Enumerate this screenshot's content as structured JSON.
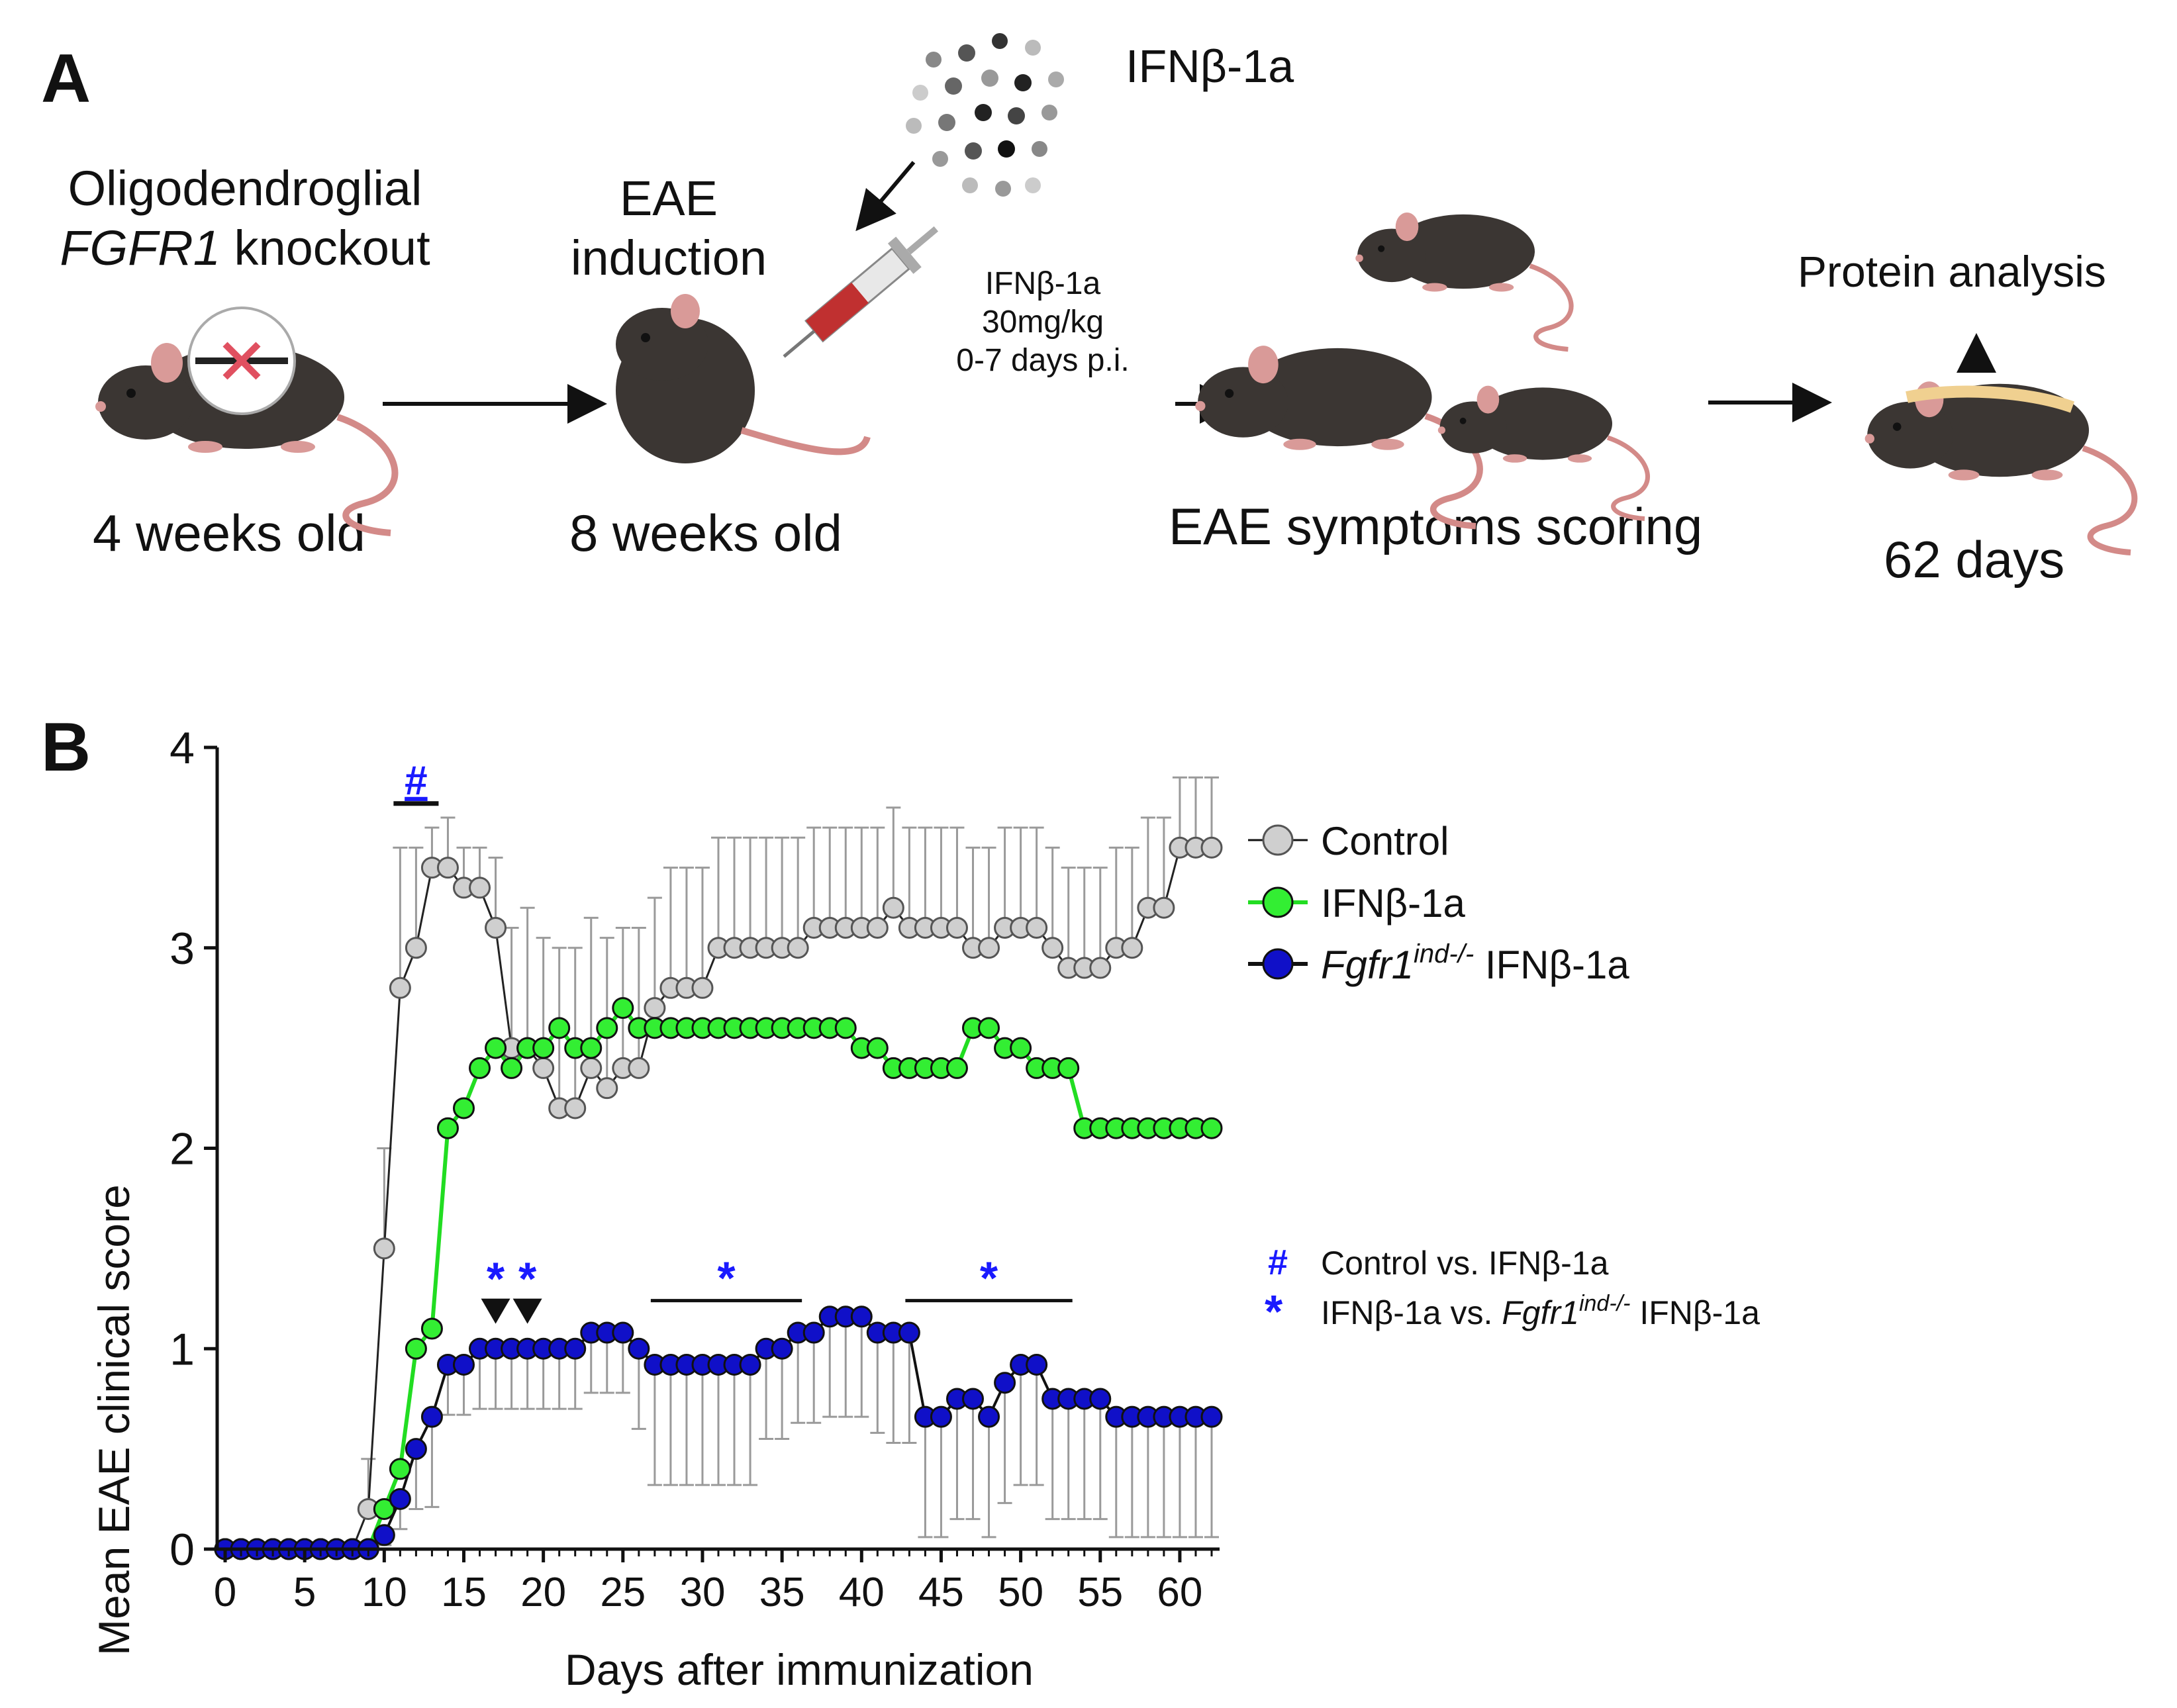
{
  "panelA": {
    "label": "A",
    "knockout_line1": "Oligodendroglial",
    "knockout_gene": "FGFR1",
    "knockout_line2_rest": " knockout",
    "age1": "4 weeks old",
    "eae_line1": "EAE",
    "eae_line2": "induction",
    "age2": "8 weeks old",
    "drug_label": "IFNβ-1a",
    "dose_line1": "IFNβ-1a",
    "dose_line2": "30mg/kg",
    "dose_line3": "0-7 days p.i.",
    "scoring": "EAE symptoms scoring",
    "protein": "Protein analysis",
    "days62": "62 days"
  },
  "panelB": {
    "label": "B",
    "legend": {
      "control": "Control",
      "ifn": "IFNβ-1a",
      "fgfr_italic": "Fgfr1",
      "fgfr_sup": "ind-/-",
      "fgfr_rest": " IFNβ-1a"
    },
    "sig_legend": {
      "hash_symbol": "#",
      "hash_text": "Control vs. IFNβ-1a",
      "star_symbol": "*",
      "star_text_pre": "IFNβ-1a vs. ",
      "star_text_italic": "Fgfr1",
      "star_text_sup": "ind-/-",
      "star_text_post": " IFNβ-1a"
    }
  },
  "colors": {
    "control_fill": "#cfcfcf",
    "ifn_fill": "#33ee33",
    "ifn_line": "#22dd22",
    "fgfr_fill": "#1010c8",
    "sig_blue": "#1a1aff",
    "error_bar": "#9a9a9a"
  },
  "chart_data": {
    "type": "line",
    "title": "",
    "xlabel": "Days after immunization",
    "ylabel": "Mean EAE clinical score",
    "xlim": [
      -0.5,
      62.5
    ],
    "ylim": [
      0,
      4
    ],
    "xticks": [
      0,
      5,
      10,
      15,
      20,
      25,
      30,
      35,
      40,
      45,
      50,
      55,
      60
    ],
    "yticks": [
      0,
      1,
      2,
      3,
      4
    ],
    "x": [
      0,
      1,
      2,
      3,
      4,
      5,
      6,
      7,
      8,
      9,
      10,
      11,
      12,
      13,
      14,
      15,
      16,
      17,
      18,
      19,
      20,
      21,
      22,
      23,
      24,
      25,
      26,
      27,
      28,
      29,
      30,
      31,
      32,
      33,
      34,
      35,
      36,
      37,
      38,
      39,
      40,
      41,
      42,
      43,
      44,
      45,
      46,
      47,
      48,
      49,
      50,
      51,
      52,
      53,
      54,
      55,
      56,
      57,
      58,
      59,
      60,
      61,
      62
    ],
    "series": [
      {
        "name": "Control",
        "values": [
          0,
          0,
          0,
          0,
          0,
          0,
          0,
          0,
          0,
          0.2,
          1.5,
          2.8,
          3.0,
          3.4,
          3.4,
          3.3,
          3.3,
          3.1,
          2.5,
          2.5,
          2.4,
          2.2,
          2.2,
          2.4,
          2.3,
          2.4,
          2.4,
          2.7,
          2.8,
          2.8,
          2.8,
          3.0,
          3.0,
          3.0,
          3.0,
          3.0,
          3.0,
          3.1,
          3.1,
          3.1,
          3.1,
          3.1,
          3.2,
          3.1,
          3.1,
          3.1,
          3.1,
          3.0,
          3.0,
          3.1,
          3.1,
          3.1,
          3.0,
          2.9,
          2.9,
          2.9,
          3.0,
          3.0,
          3.2,
          3.2,
          3.5,
          3.5,
          3.5
        ],
        "error_plus": [
          0,
          0,
          0,
          0,
          0,
          0,
          0,
          0,
          0,
          0.25,
          0.5,
          0.7,
          0.5,
          0.2,
          0.25,
          0.2,
          0.2,
          0.35,
          0.6,
          0.7,
          0.65,
          0.8,
          0.8,
          0.75,
          0.75,
          0.7,
          0.7,
          0.55,
          0.6,
          0.6,
          0.6,
          0.55,
          0.55,
          0.55,
          0.55,
          0.55,
          0.55,
          0.5,
          0.5,
          0.5,
          0.5,
          0.5,
          0.5,
          0.5,
          0.5,
          0.5,
          0.5,
          0.5,
          0.5,
          0.5,
          0.5,
          0.5,
          0.5,
          0.5,
          0.5,
          0.5,
          0.5,
          0.5,
          0.45,
          0.45,
          0.35,
          0.35,
          0.35
        ]
      },
      {
        "name": "IFNβ-1a",
        "values": [
          0,
          0,
          0,
          0,
          0,
          0,
          0,
          0,
          0,
          0,
          0.2,
          0.4,
          1.0,
          1.1,
          2.1,
          2.2,
          2.4,
          2.5,
          2.4,
          2.5,
          2.5,
          2.6,
          2.5,
          2.5,
          2.6,
          2.7,
          2.6,
          2.6,
          2.6,
          2.6,
          2.6,
          2.6,
          2.6,
          2.6,
          2.6,
          2.6,
          2.6,
          2.6,
          2.6,
          2.6,
          2.5,
          2.5,
          2.4,
          2.4,
          2.4,
          2.4,
          2.4,
          2.6,
          2.6,
          2.5,
          2.5,
          2.4,
          2.4,
          2.4,
          2.1,
          2.1,
          2.1,
          2.1,
          2.1,
          2.1,
          2.1,
          2.1,
          2.1
        ]
      },
      {
        "name": "Fgfr1 ind-/- IFNβ-1a",
        "values": [
          0,
          0,
          0,
          0,
          0,
          0,
          0,
          0,
          0,
          0,
          0.07,
          0.25,
          0.5,
          0.66,
          0.92,
          0.92,
          1.0,
          1.0,
          1.0,
          1.0,
          1.0,
          1.0,
          1.0,
          1.08,
          1.08,
          1.08,
          1.0,
          0.92,
          0.92,
          0.92,
          0.92,
          0.92,
          0.92,
          0.92,
          1.0,
          1.0,
          1.08,
          1.08,
          1.16,
          1.16,
          1.16,
          1.08,
          1.08,
          1.08,
          0.66,
          0.66,
          0.75,
          0.75,
          0.66,
          0.83,
          0.92,
          0.92,
          0.75,
          0.75,
          0.75,
          0.75,
          0.66,
          0.66,
          0.66,
          0.66,
          0.66,
          0.66,
          0.66
        ],
        "error_minus": [
          0,
          0,
          0,
          0,
          0,
          0,
          0,
          0,
          0,
          0,
          0.05,
          0.15,
          0.3,
          0.45,
          0.25,
          0.25,
          0.3,
          0.3,
          0.3,
          0.3,
          0.3,
          0.3,
          0.3,
          0.3,
          0.3,
          0.3,
          0.4,
          0.6,
          0.6,
          0.6,
          0.6,
          0.6,
          0.6,
          0.6,
          0.45,
          0.45,
          0.45,
          0.45,
          0.5,
          0.5,
          0.5,
          0.5,
          0.55,
          0.55,
          0.6,
          0.6,
          0.6,
          0.6,
          0.6,
          0.6,
          0.6,
          0.6,
          0.6,
          0.6,
          0.6,
          0.6,
          0.6,
          0.6,
          0.6,
          0.6,
          0.6,
          0.6,
          0.6
        ]
      }
    ],
    "annotations": [
      {
        "symbol": "#",
        "x_start": 11,
        "x_end": 13,
        "meaning": "Control vs. IFNβ-1a"
      },
      {
        "symbol": "*",
        "x": 17,
        "marker": "triangle"
      },
      {
        "symbol": "*",
        "x": 19,
        "marker": "triangle"
      },
      {
        "symbol": "*",
        "x_start": 27,
        "x_end": 36
      },
      {
        "symbol": "*",
        "x_start": 43,
        "x_end": 53
      }
    ],
    "legend_position": "right"
  }
}
